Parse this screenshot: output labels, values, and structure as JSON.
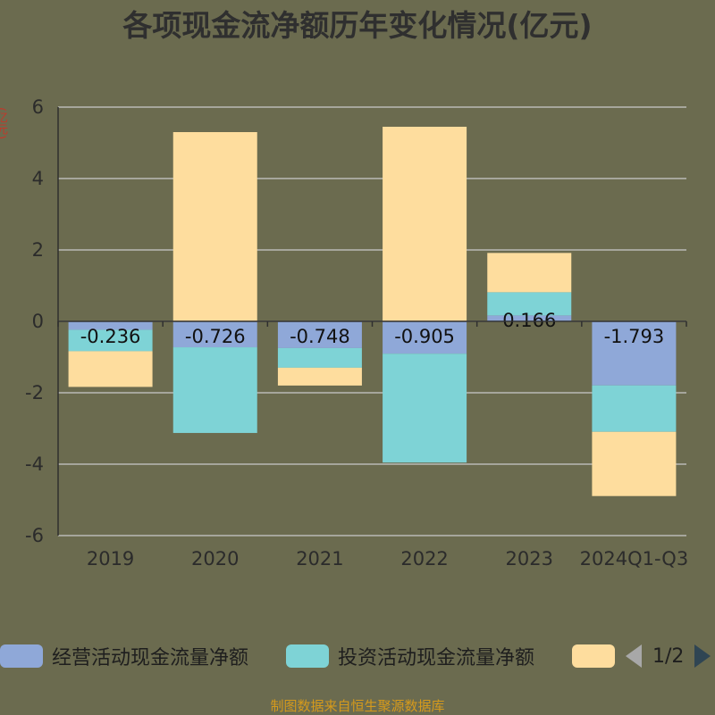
{
  "chart_data": {
    "type": "bar",
    "title": "各项现金流净额历年变化情况(亿元)",
    "unit_label": "(亿元)",
    "categories": [
      "2019",
      "2020",
      "2021",
      "2022",
      "2023",
      "2024Q1-Q3"
    ],
    "series": [
      {
        "name": "经营活动现金流量净额",
        "color": "#8fa8d8",
        "values": [
          -0.236,
          -0.726,
          -0.748,
          -0.905,
          0.166,
          -1.793
        ]
      },
      {
        "name": "投资活动现金流量净额",
        "color": "#7ed3d6",
        "values": [
          -0.6,
          -2.4,
          -0.55,
          -3.05,
          0.65,
          -1.3
        ]
      },
      {
        "name": "",
        "color": "#fedd9e",
        "values": [
          -1.0,
          5.3,
          -0.5,
          5.45,
          1.1,
          -1.8
        ]
      }
    ],
    "data_labels": [
      "-0.236",
      "-0.726",
      "-0.748",
      "-0.905",
      "0.166",
      "-1.793"
    ],
    "yticks": [
      6,
      4,
      2,
      0,
      -2,
      -4,
      -6
    ],
    "ylim": [
      -6,
      6
    ],
    "grid": true,
    "legend_position": "bottom"
  },
  "legend": {
    "items": [
      {
        "label": "经营活动现金流量净额",
        "color": "#8fa8d8"
      },
      {
        "label": "投资活动现金流量净额",
        "color": "#7ed3d6"
      },
      {
        "label": "",
        "color": "#fedd9e"
      }
    ],
    "page_text": "1/2"
  },
  "source": "制图数据来自恒生聚源数据库"
}
